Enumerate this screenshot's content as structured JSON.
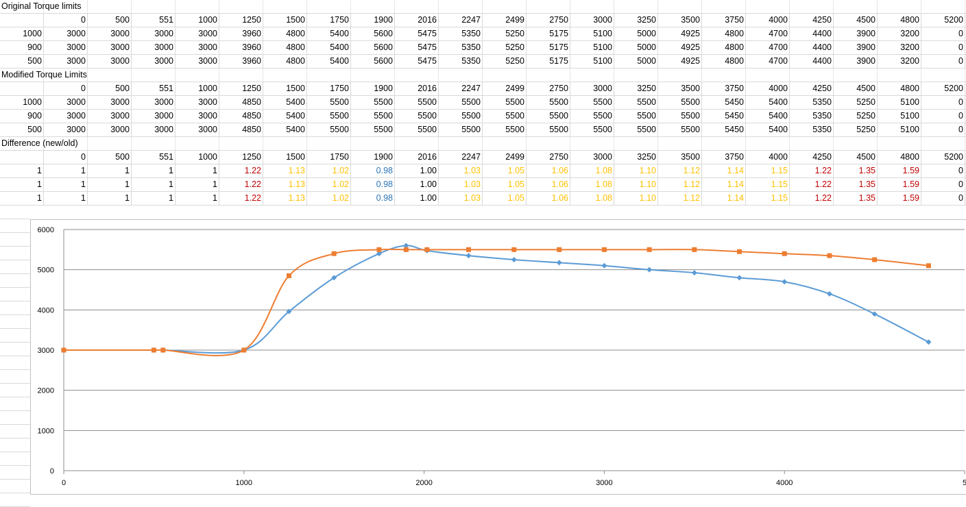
{
  "sheet": {
    "columns": [
      "0",
      "500",
      "551",
      "1000",
      "1250",
      "1500",
      "1750",
      "1900",
      "2016",
      "2247",
      "2499",
      "2750",
      "3000",
      "3250",
      "3500",
      "3750",
      "4000",
      "4250",
      "4500",
      "4800",
      "5200"
    ],
    "sections": [
      {
        "title": "Original Torque limits",
        "rows": [
          {
            "label": "1000",
            "cells": [
              "3000",
              "3000",
              "3000",
              "3000",
              "3960",
              "4800",
              "5400",
              "5600",
              "5475",
              "5350",
              "5250",
              "5175",
              "5100",
              "5000",
              "4925",
              "4800",
              "4700",
              "4400",
              "3900",
              "3200",
              "0"
            ]
          },
          {
            "label": "900",
            "cells": [
              "3000",
              "3000",
              "3000",
              "3000",
              "3960",
              "4800",
              "5400",
              "5600",
              "5475",
              "5350",
              "5250",
              "5175",
              "5100",
              "5000",
              "4925",
              "4800",
              "4700",
              "4400",
              "3900",
              "3200",
              "0"
            ]
          },
          {
            "label": "500",
            "cells": [
              "3000",
              "3000",
              "3000",
              "3000",
              "3960",
              "4800",
              "5400",
              "5600",
              "5475",
              "5350",
              "5250",
              "5175",
              "5100",
              "5000",
              "4925",
              "4800",
              "4700",
              "4400",
              "3900",
              "3200",
              "0"
            ]
          }
        ]
      },
      {
        "title": "Modified Torque Limits",
        "rows": [
          {
            "label": "1000",
            "cells": [
              "3000",
              "3000",
              "3000",
              "3000",
              "4850",
              "5400",
              "5500",
              "5500",
              "5500",
              "5500",
              "5500",
              "5500",
              "5500",
              "5500",
              "5500",
              "5450",
              "5400",
              "5350",
              "5250",
              "5100",
              "0"
            ]
          },
          {
            "label": "900",
            "cells": [
              "3000",
              "3000",
              "3000",
              "3000",
              "4850",
              "5400",
              "5500",
              "5500",
              "5500",
              "5500",
              "5500",
              "5500",
              "5500",
              "5500",
              "5500",
              "5450",
              "5400",
              "5350",
              "5250",
              "5100",
              "0"
            ]
          },
          {
            "label": "500",
            "cells": [
              "3000",
              "3000",
              "3000",
              "3000",
              "4850",
              "5400",
              "5500",
              "5500",
              "5500",
              "5500",
              "5500",
              "5500",
              "5500",
              "5500",
              "5500",
              "5450",
              "5400",
              "5350",
              "5250",
              "5100",
              "0"
            ]
          }
        ]
      },
      {
        "title": "Difference (new/old)",
        "rows": [
          {
            "label": "1",
            "cells": [
              "1",
              "1",
              "1",
              "1",
              "1.22",
              "1.13",
              "1.02",
              "0.98",
              "1.00",
              "1.03",
              "1.05",
              "1.06",
              "1.08",
              "1.10",
              "1.12",
              "1.14",
              "1.15",
              "1.22",
              "1.35",
              "1.59",
              "0"
            ]
          },
          {
            "label": "1",
            "cells": [
              "1",
              "1",
              "1",
              "1",
              "1.22",
              "1.13",
              "1.02",
              "0.98",
              "1.00",
              "1.03",
              "1.05",
              "1.06",
              "1.08",
              "1.10",
              "1.12",
              "1.14",
              "1.15",
              "1.22",
              "1.35",
              "1.59",
              "0"
            ]
          },
          {
            "label": "1",
            "cells": [
              "1",
              "1",
              "1",
              "1",
              "1.22",
              "1.13",
              "1.02",
              "0.98",
              "1.00",
              "1.03",
              "1.05",
              "1.06",
              "1.08",
              "1.10",
              "1.12",
              "1.14",
              "1.15",
              "1.22",
              "1.35",
              "1.59",
              "0"
            ]
          }
        ]
      }
    ],
    "diff_colors": [
      "none",
      "none",
      "none",
      "none",
      "red",
      "yel",
      "yel",
      "blu",
      "none",
      "yel",
      "yel",
      "yel",
      "yel",
      "yel",
      "yel",
      "yel",
      "yel",
      "red",
      "red",
      "red",
      "none"
    ],
    "color_hex": {
      "red": "#c00000",
      "yel": "#ffc000",
      "blu": "#2e75b6"
    }
  },
  "chart_data": {
    "type": "line",
    "title": "",
    "xlabel": "",
    "ylabel": "",
    "xlim": [
      0,
      5000
    ],
    "ylim": [
      0,
      6000
    ],
    "x_ticks": [
      "0",
      "1000",
      "2000",
      "3000",
      "4000",
      "5"
    ],
    "y_ticks": [
      "0",
      "1000",
      "2000",
      "3000",
      "4000",
      "5000",
      "6000"
    ],
    "grid": "horizontal",
    "legend": "none",
    "x": [
      0,
      500,
      551,
      1000,
      1250,
      1500,
      1750,
      1900,
      2016,
      2247,
      2499,
      2750,
      3000,
      3250,
      3500,
      3750,
      4000,
      4250,
      4500,
      4800
    ],
    "series": [
      {
        "color": "#5b9bd5",
        "marker": "diamond",
        "values": [
          3000,
          3000,
          3000,
          3000,
          3960,
          4800,
          5400,
          5600,
          5475,
          5350,
          5250,
          5175,
          5100,
          5000,
          4925,
          4800,
          4700,
          4400,
          3900,
          3200
        ]
      },
      {
        "color": "#ed7d31",
        "marker": "square",
        "values": [
          3000,
          3000,
          3000,
          3000,
          4850,
          5400,
          5500,
          5500,
          5500,
          5500,
          5500,
          5500,
          5500,
          5500,
          5500,
          5450,
          5400,
          5350,
          5250,
          5100
        ]
      }
    ]
  }
}
